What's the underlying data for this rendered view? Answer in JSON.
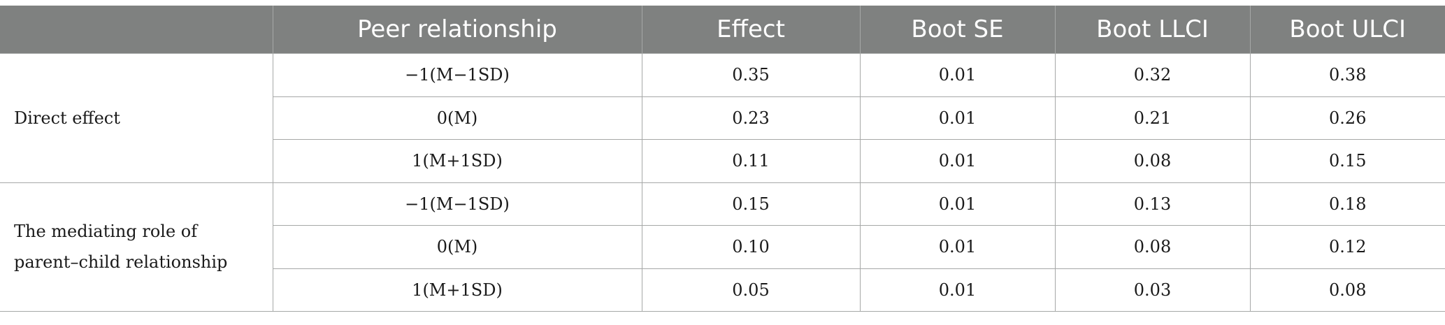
{
  "table": {
    "headers": [
      "",
      "Peer relationship",
      "Effect",
      "Boot SE",
      "Boot LLCI",
      "Boot ULCI"
    ],
    "groups": [
      {
        "label": "Direct effect",
        "rows": [
          [
            "−1(M−1SD)",
            "0.35",
            "0.01",
            "0.32",
            "0.38"
          ],
          [
            "0(M)",
            "0.23",
            "0.01",
            "0.21",
            "0.26"
          ],
          [
            "1(M+1SD)",
            "0.11",
            "0.01",
            "0.08",
            "0.15"
          ]
        ]
      },
      {
        "label": "The mediating role of parent–child relationship",
        "rows": [
          [
            "−1(M−1SD)",
            "0.15",
            "0.01",
            "0.13",
            "0.18"
          ],
          [
            "0(M)",
            "0.10",
            "0.01",
            "0.08",
            "0.12"
          ],
          [
            "1(M+1SD)",
            "0.05",
            "0.01",
            "0.03",
            "0.08"
          ]
        ]
      }
    ]
  }
}
